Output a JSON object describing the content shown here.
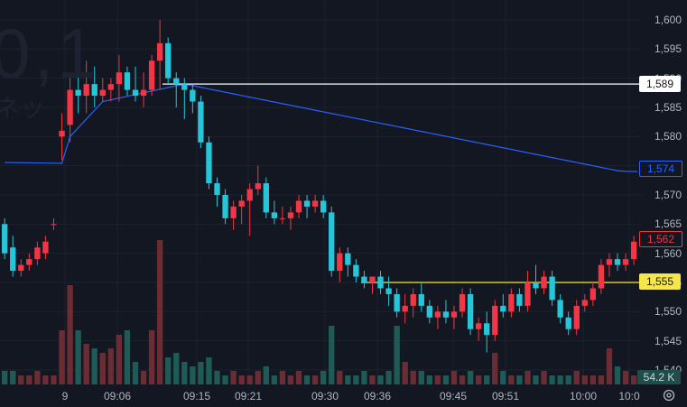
{
  "watermark": {
    "text": "0,1",
    "sub": "ネッ"
  },
  "y_axis": {
    "ticks": [
      "1,600",
      "1,595",
      "1,590",
      "1,585",
      "1,580",
      "1,575",
      "1,570",
      "1,565",
      "1,560",
      "1,555",
      "1,550",
      "1,545",
      "1,540"
    ]
  },
  "x_axis": {
    "ticks": [
      "9",
      "09:06",
      "09:15",
      "09:21",
      "09:30",
      "09:36",
      "09:45",
      "09:51",
      "10:00",
      "10:0"
    ]
  },
  "price_tags": {
    "white_line": "1,589",
    "vwap": "1,574",
    "last": "1,562",
    "yellow_line": "1,555"
  },
  "volume_label": "54.2 K",
  "colors": {
    "up": "#f23645",
    "down": "#22ab94",
    "candle_up": "#f23645",
    "candle_down": "#26c6da",
    "vwap": "#2962ff",
    "white_line": "#ffffff",
    "yellow_line": "#f5e74a"
  },
  "icons": {
    "settings": "gear-icon"
  },
  "chart_data": {
    "type": "candlestick",
    "title": "",
    "ylim": [
      1539,
      1601
    ],
    "horizontal_lines": [
      1589,
      1555
    ],
    "candles": [
      [
        1565,
        1566,
        1559,
        1560
      ],
      [
        1561,
        1563,
        1556,
        1557
      ],
      [
        1557,
        1559,
        1556,
        1558
      ],
      [
        1558,
        1560,
        1557,
        1559
      ],
      [
        1559,
        1562,
        1558,
        1561
      ],
      [
        1560,
        1563,
        1559,
        1562
      ],
      [
        1565,
        1566,
        1564,
        1565
      ],
      [
        1580,
        1584,
        1576,
        1581
      ],
      [
        1582,
        1590,
        1579,
        1588
      ],
      [
        1588,
        1593,
        1584,
        1587
      ],
      [
        1587,
        1593,
        1584,
        1589
      ],
      [
        1589,
        1592,
        1585,
        1587
      ],
      [
        1587,
        1590,
        1586,
        1588
      ],
      [
        1588,
        1590,
        1586,
        1589
      ],
      [
        1589,
        1594,
        1586,
        1591
      ],
      [
        1591,
        1592,
        1587,
        1588
      ],
      [
        1588,
        1592,
        1586,
        1587
      ],
      [
        1587,
        1591,
        1585,
        1588
      ],
      [
        1588,
        1594,
        1587,
        1593
      ],
      [
        1593,
        1600,
        1588,
        1596
      ],
      [
        1596,
        1597,
        1589,
        1590
      ],
      [
        1590,
        1591,
        1585,
        1589
      ],
      [
        1589,
        1590,
        1583,
        1588
      ],
      [
        1588,
        1589,
        1584,
        1586
      ],
      [
        1586,
        1587,
        1578,
        1579
      ],
      [
        1579,
        1580,
        1571,
        1572
      ],
      [
        1572,
        1573,
        1568,
        1570
      ],
      [
        1570,
        1571,
        1565,
        1566
      ],
      [
        1566,
        1569,
        1564,
        1568
      ],
      [
        1568,
        1570,
        1565,
        1569
      ],
      [
        1569,
        1572,
        1563,
        1571
      ],
      [
        1571,
        1575,
        1570,
        1572
      ],
      [
        1572,
        1573,
        1566,
        1567
      ],
      [
        1567,
        1569,
        1565,
        1566
      ],
      [
        1566,
        1568,
        1565,
        1566
      ],
      [
        1566,
        1568,
        1564,
        1567
      ],
      [
        1567,
        1570,
        1566,
        1569
      ],
      [
        1569,
        1570,
        1566,
        1568
      ],
      [
        1568,
        1570,
        1567,
        1569
      ],
      [
        1569,
        1570,
        1566,
        1567
      ],
      [
        1567,
        1568,
        1556,
        1557
      ],
      [
        1557,
        1561,
        1555,
        1560
      ],
      [
        1560,
        1561,
        1556,
        1558
      ],
      [
        1558,
        1559,
        1555,
        1556
      ],
      [
        1556,
        1557,
        1554,
        1555
      ],
      [
        1555,
        1556,
        1553,
        1556
      ],
      [
        1556,
        1557,
        1553,
        1554
      ],
      [
        1554,
        1556,
        1551,
        1553
      ],
      [
        1553,
        1554,
        1549,
        1550
      ],
      [
        1550,
        1553,
        1548,
        1551
      ],
      [
        1551,
        1554,
        1549,
        1553
      ],
      [
        1553,
        1555,
        1550,
        1551
      ],
      [
        1551,
        1552,
        1548,
        1549
      ],
      [
        1549,
        1551,
        1547,
        1550
      ],
      [
        1550,
        1552,
        1548,
        1549
      ],
      [
        1549,
        1551,
        1547,
        1550
      ],
      [
        1550,
        1554,
        1549,
        1553
      ],
      [
        1553,
        1554,
        1546,
        1547
      ],
      [
        1547,
        1549,
        1545,
        1548
      ],
      [
        1548,
        1550,
        1543,
        1546
      ],
      [
        1546,
        1552,
        1545,
        1551
      ],
      [
        1551,
        1553,
        1549,
        1550
      ],
      [
        1550,
        1554,
        1549,
        1553
      ],
      [
        1553,
        1554,
        1550,
        1551
      ],
      [
        1551,
        1557,
        1550,
        1555
      ],
      [
        1555,
        1558,
        1553,
        1554
      ],
      [
        1554,
        1557,
        1553,
        1556
      ],
      [
        1556,
        1557,
        1551,
        1552
      ],
      [
        1552,
        1553,
        1548,
        1549
      ],
      [
        1549,
        1550,
        1546,
        1547
      ],
      [
        1547,
        1552,
        1546,
        1551
      ],
      [
        1551,
        1553,
        1550,
        1552
      ],
      [
        1552,
        1555,
        1551,
        1554
      ],
      [
        1554,
        1559,
        1553,
        1558
      ],
      [
        1558,
        1560,
        1556,
        1559
      ],
      [
        1559,
        1560,
        1557,
        1558
      ],
      [
        1558,
        1560,
        1557,
        1559
      ],
      [
        1559,
        1563,
        1558,
        1562
      ]
    ],
    "volume": [
      3,
      3,
      2,
      2,
      3,
      2,
      2,
      12,
      22,
      12,
      9,
      8,
      7,
      8,
      11,
      12,
      5,
      3,
      12,
      32,
      6,
      7,
      5,
      4,
      5,
      6,
      3,
      2,
      3,
      2,
      2,
      3,
      4,
      2,
      3,
      2,
      3,
      2,
      2,
      3,
      13,
      3,
      2,
      2,
      3,
      2,
      2,
      3,
      13,
      5,
      3,
      3,
      2,
      2,
      2,
      3,
      2,
      3,
      2,
      2,
      7,
      3,
      2,
      2,
      3,
      2,
      3,
      2,
      2,
      2,
      3,
      2,
      2,
      2,
      8,
      4,
      3,
      2
    ]
  }
}
